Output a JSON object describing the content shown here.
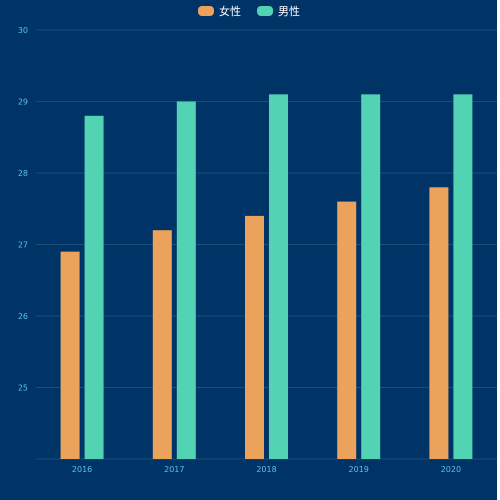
{
  "colors": {
    "background": "#003366",
    "grid": "#1a4d7a",
    "tick_text": "#5bc0f0",
    "legend_text": "#ffffff"
  },
  "chart_data": {
    "type": "bar",
    "categories": [
      "2016",
      "2017",
      "2018",
      "2019",
      "2020"
    ],
    "series": [
      {
        "name": "女性",
        "color": "#eba35c",
        "values": [
          26.9,
          27.2,
          27.4,
          27.6,
          27.8
        ]
      },
      {
        "name": "男性",
        "color": "#52d3b3",
        "values": [
          28.8,
          29.0,
          29.1,
          29.1,
          29.1
        ]
      }
    ],
    "yticks": [
      25,
      26,
      27,
      28,
      29,
      30
    ],
    "ylim": [
      24,
      30
    ],
    "grid": true,
    "legend_position": "top-center",
    "title": "",
    "xlabel": "",
    "ylabel": ""
  }
}
